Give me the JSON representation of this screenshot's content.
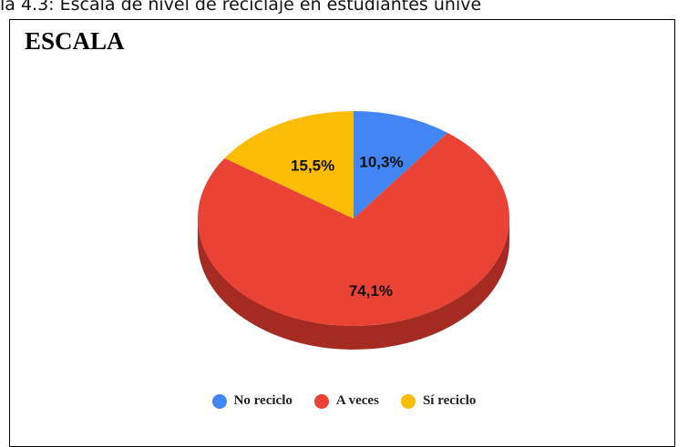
{
  "caption": "la 4.3: Escala de nivel de reciclaje en estudiantes unive",
  "chart_data": {
    "type": "pie",
    "title": "ESCALA",
    "categories": [
      "No reciclo",
      "A veces",
      "Sí reciclo"
    ],
    "values": [
      10.3,
      74.1,
      15.5
    ],
    "labels": [
      "10,3%",
      "74,1%",
      "15,5%"
    ],
    "colors": [
      "#4285F4",
      "#EA4335",
      "#FBBC04"
    ],
    "side_colors": [
      "#2f62b8",
      "#A52A22",
      "#c08f00"
    ],
    "legend_position": "bottom",
    "three_d": true
  }
}
